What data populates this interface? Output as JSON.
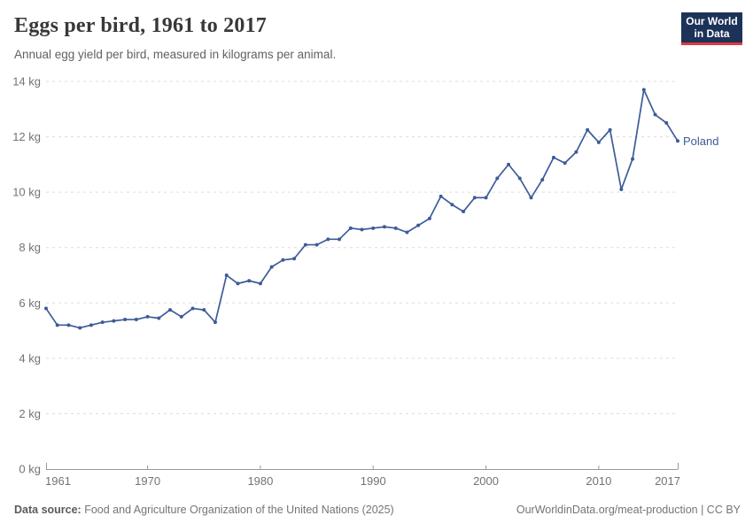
{
  "header": {
    "title": "Eggs per bird, 1961 to 2017",
    "subtitle": "Annual egg yield per bird, measured in kilograms per animal."
  },
  "logo": {
    "line1": "Our World",
    "line2": "in Data",
    "bg_color": "#1d3259",
    "accent_color": "#e0383e"
  },
  "footer": {
    "source_label": "Data source:",
    "source_text": " Food and Agriculture Organization of the United Nations (2025)",
    "credit": "OurWorldinData.org/meat-production | CC BY"
  },
  "chart_data": {
    "type": "line",
    "title": "Eggs per bird, 1961 to 2017",
    "subtitle": "Annual egg yield per bird, measured in kilograms per animal.",
    "xlabel": "",
    "ylabel": "",
    "xlim": [
      1961,
      2017
    ],
    "ylim": [
      0,
      14
    ],
    "xticks": [
      1961,
      1970,
      1980,
      1990,
      2000,
      2010,
      2017
    ],
    "yticks": [
      0,
      2,
      4,
      6,
      8,
      10,
      12,
      14
    ],
    "ytick_suffix": " kg",
    "grid": "horizontal-dashed",
    "legend_position": "end-of-line-label",
    "x": [
      1961,
      1962,
      1963,
      1964,
      1965,
      1966,
      1967,
      1968,
      1969,
      1970,
      1971,
      1972,
      1973,
      1974,
      1975,
      1976,
      1977,
      1978,
      1979,
      1980,
      1981,
      1982,
      1983,
      1984,
      1985,
      1986,
      1987,
      1988,
      1989,
      1990,
      1991,
      1992,
      1993,
      1994,
      1995,
      1996,
      1997,
      1998,
      1999,
      2000,
      2001,
      2002,
      2003,
      2004,
      2005,
      2006,
      2007,
      2008,
      2009,
      2010,
      2011,
      2012,
      2013,
      2014,
      2015,
      2016,
      2017
    ],
    "series": [
      {
        "name": "Poland",
        "color": "#3d5b99",
        "values": [
          5.8,
          5.2,
          5.2,
          5.1,
          5.2,
          5.3,
          5.35,
          5.4,
          5.4,
          5.5,
          5.45,
          5.75,
          5.5,
          5.8,
          5.75,
          5.3,
          7.0,
          6.7,
          6.8,
          6.7,
          7.3,
          7.55,
          7.6,
          8.1,
          8.1,
          8.3,
          8.3,
          8.7,
          8.65,
          8.7,
          8.75,
          8.7,
          8.55,
          8.8,
          9.05,
          9.85,
          9.55,
          9.3,
          9.8,
          9.8,
          10.5,
          11.0,
          10.5,
          9.8,
          10.45,
          11.25,
          11.05,
          11.45,
          12.25,
          11.8,
          12.25,
          10.1,
          11.2,
          13.7,
          12.8,
          12.5,
          11.85
        ]
      }
    ],
    "axis_colors": {
      "grid": "#dcdcdc",
      "axis_line": "#999999",
      "tick_label": "#737373"
    }
  }
}
